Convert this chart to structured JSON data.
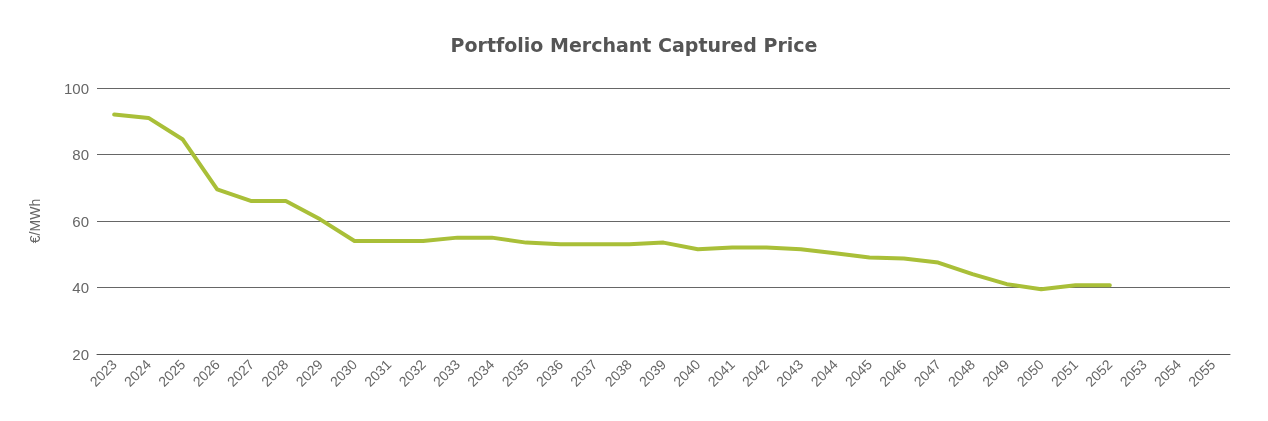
{
  "chart_data": {
    "type": "line",
    "title": "Portfolio Merchant Captured Price",
    "ylabel": "€/MWh",
    "categories": [
      "2023",
      "2024",
      "2025",
      "2026",
      "2027",
      "2028",
      "2029",
      "2030",
      "2031",
      "2032",
      "2033",
      "2034",
      "2035",
      "2036",
      "2037",
      "2038",
      "2039",
      "2040",
      "2041",
      "2042",
      "2043",
      "2044",
      "2045",
      "2046",
      "2047",
      "2048",
      "2049",
      "2050",
      "2051",
      "2052",
      "2053",
      "2054",
      "2055"
    ],
    "series": [
      {
        "color": "#a9bf38",
        "values": [
          92,
          91,
          84.5,
          69.5,
          66,
          66,
          60.5,
          54,
          54,
          54,
          55,
          55,
          53.5,
          53,
          53,
          53,
          53.5,
          51.5,
          52,
          52,
          51.5,
          50.3,
          49,
          48.7,
          47.5,
          44,
          41,
          39.5,
          40.7,
          40.7,
          null,
          null,
          null
        ]
      }
    ],
    "ylim": [
      20,
      100
    ],
    "yticks": [
      20,
      40,
      60,
      80,
      100
    ],
    "grid": "y",
    "marker": "none",
    "line_style": "solid"
  }
}
